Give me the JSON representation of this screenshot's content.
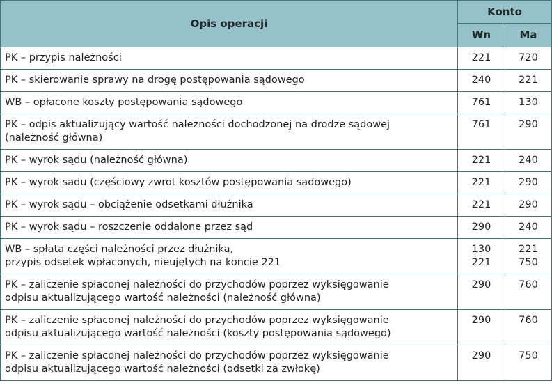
{
  "header": {
    "description": "Opis operacji",
    "account": "Konto",
    "debit": "Wn",
    "credit": "Ma"
  },
  "colors": {
    "header_bg": "#97c1c8",
    "border": "#46727b"
  },
  "rows": [
    {
      "lines": [
        "PK – przypis należności"
      ],
      "wn": [
        "221"
      ],
      "ma": [
        "720"
      ]
    },
    {
      "lines": [
        "PK – skierowanie sprawy na drogę postępowania sądowego"
      ],
      "wn": [
        "240"
      ],
      "ma": [
        "221"
      ]
    },
    {
      "lines": [
        "WB – opłacone koszty postępowania sądowego"
      ],
      "wn": [
        "761"
      ],
      "ma": [
        "130"
      ]
    },
    {
      "lines": [
        "PK – odpis aktualizujący wartość należności dochodzonej na drodze sądowej",
        "(należność główna)"
      ],
      "wn": [
        "761"
      ],
      "ma": [
        "290"
      ]
    },
    {
      "lines": [
        "PK – wyrok sądu (należność główna)"
      ],
      "wn": [
        "221"
      ],
      "ma": [
        "240"
      ]
    },
    {
      "lines": [
        "PK – wyrok sądu (częściowy zwrot kosztów postępowania sądowego)"
      ],
      "wn": [
        "221"
      ],
      "ma": [
        "290"
      ]
    },
    {
      "lines": [
        "PK – wyrok sądu – obciążenie odsetkami dłużnika"
      ],
      "wn": [
        "221"
      ],
      "ma": [
        "290"
      ]
    },
    {
      "lines": [
        "PK – wyrok sądu – roszczenie oddalone przez sąd"
      ],
      "wn": [
        "290"
      ],
      "ma": [
        "240"
      ]
    },
    {
      "lines": [
        "WB – spłata części należności przez dłużnika,",
        "przypis odsetek wpłaconych, nieujętych na koncie 221"
      ],
      "wn": [
        "130",
        "221"
      ],
      "ma": [
        "221",
        "750"
      ]
    },
    {
      "lines": [
        "PK – zaliczenie spłaconej należności do przychodów poprzez wyksięgowanie",
        "odpisu aktualizującego wartość należności (należność główna)"
      ],
      "wn": [
        "290"
      ],
      "ma": [
        "760"
      ]
    },
    {
      "lines": [
        "PK – zaliczenie spłaconej należności do przychodów poprzez wyksięgowanie",
        "odpisu aktualizującego wartość należności (koszty postępowania sądowego)"
      ],
      "wn": [
        "290"
      ],
      "ma": [
        "760"
      ]
    },
    {
      "lines": [
        "PK – zaliczenie spłaconej należności do przychodów poprzez wyksięgowanie",
        "odpisu aktualizującego wartość należności (odsetki za zwłokę)"
      ],
      "wn": [
        "290"
      ],
      "ma": [
        "750"
      ]
    }
  ]
}
